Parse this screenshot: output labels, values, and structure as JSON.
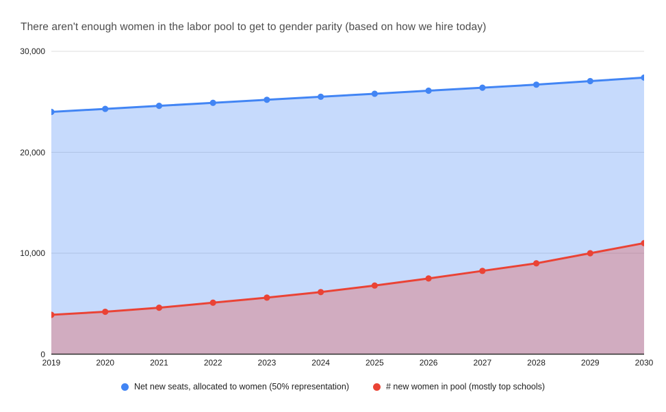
{
  "title": "There aren't enough women in the labor pool to get to gender parity (based on how we hire today)",
  "colors": {
    "background": "#ffffff",
    "title_text": "#4c4c4c",
    "tick_text": "#1c1c1c",
    "legend_text": "#202020",
    "gridline": "#dedede",
    "axis_line": "#2b2b2b",
    "series1": "#4285F4",
    "series2": "#EA4335",
    "series1_fill_area": "#c6dafb",
    "series2_fill_area_blended": "#d0aec1"
  },
  "chart_data": {
    "type": "area",
    "title": "There aren't enough women in the labor pool to get to gender parity (based on how we hire today)",
    "categories": [
      "2019",
      "2020",
      "2021",
      "2022",
      "2023",
      "2024",
      "2025",
      "2026",
      "2027",
      "2028",
      "2029",
      "2030"
    ],
    "series": [
      {
        "name": "Net new seats, allocated to women (50% representation)",
        "color": "#4285F4",
        "fill": "rgba(66,133,244,0.30)",
        "values": [
          24000,
          24300,
          24600,
          24900,
          25200,
          25500,
          25800,
          26100,
          26400,
          26700,
          27050,
          27400
        ]
      },
      {
        "name": "# new women in pool (mostly top schools)",
        "color": "#EA4335",
        "fill": "rgba(234,67,53,0.30)",
        "values": [
          3900,
          4200,
          4600,
          5100,
          5600,
          6150,
          6800,
          7500,
          8250,
          9000,
          10000,
          11000
        ]
      }
    ],
    "xlabel": "",
    "ylabel": "",
    "y_axis": {
      "min": 0,
      "max": 30000,
      "ticks": [
        {
          "value": 0,
          "label": "0"
        },
        {
          "value": 10000,
          "label": "10,000"
        },
        {
          "value": 20000,
          "label": "20,000"
        },
        {
          "value": 30000,
          "label": "30,000"
        }
      ]
    },
    "grid": true,
    "legend_position": "bottom"
  }
}
